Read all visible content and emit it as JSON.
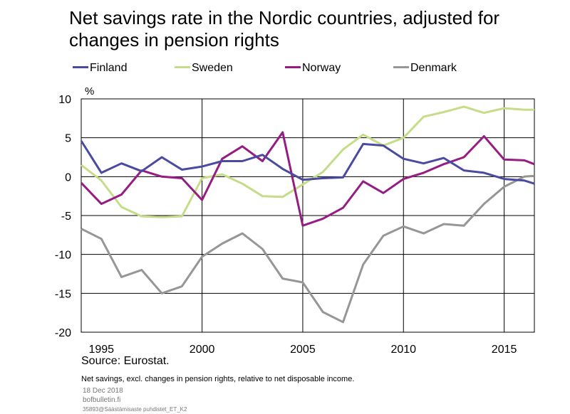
{
  "title": "Net savings rate in the Nordic countries, adjusted for changes in pension rights",
  "source": "Source: Eurostat.",
  "note": "Net savings, excl. changes in pension rights, relative to net disposable income.",
  "date": "18 Dec 2018",
  "site": "bofbulletin.fi",
  "file_id": "35893@Säästämisaste puhdistet_ET_K2",
  "chart_data": {
    "type": "line",
    "ylabel": "%",
    "xlabel": "",
    "ylim": [
      -20,
      10
    ],
    "xlim": [
      1994,
      2016.5
    ],
    "yticks": [
      10,
      5,
      0,
      -5,
      -10,
      -15,
      -20
    ],
    "xticks": [
      1995,
      2000,
      2005,
      2010,
      2015
    ],
    "grid": true,
    "legend": "top",
    "x": [
      1994,
      1995,
      1996,
      1997,
      1998,
      1999,
      2000,
      2001,
      2002,
      2003,
      2004,
      2005,
      2006,
      2007,
      2008,
      2009,
      2010,
      2011,
      2012,
      2013,
      2014,
      2015,
      2016,
      2016.5
    ],
    "series": [
      {
        "name": "Finland",
        "color": "#4a4ba0",
        "values": [
          4.6,
          0.5,
          1.7,
          0.7,
          2.5,
          0.9,
          1.3,
          2.0,
          2.0,
          2.8,
          1.0,
          -0.4,
          -0.2,
          -0.1,
          4.2,
          4.0,
          2.3,
          1.7,
          2.4,
          0.8,
          0.5,
          -0.3,
          -0.5,
          -0.9
        ]
      },
      {
        "name": "Sweden",
        "color": "#c5dc89",
        "values": [
          1.5,
          -0.5,
          -3.9,
          -5.1,
          -5.2,
          -5.1,
          -0.2,
          0.3,
          -0.9,
          -2.5,
          -2.6,
          -1.0,
          0.6,
          3.5,
          5.4,
          4.0,
          5.0,
          7.7,
          8.3,
          9.0,
          8.2,
          8.8,
          8.6,
          8.6
        ]
      },
      {
        "name": "Norway",
        "color": "#951d82",
        "values": [
          -0.8,
          -3.5,
          -2.3,
          0.8,
          0.0,
          -0.2,
          -3.0,
          2.3,
          3.9,
          2.0,
          5.7,
          -6.3,
          -5.4,
          -4.0,
          -0.6,
          -2.1,
          -0.3,
          0.5,
          1.6,
          2.5,
          5.2,
          2.2,
          2.1,
          1.6
        ]
      },
      {
        "name": "Denmark",
        "color": "#969696",
        "values": [
          -6.7,
          -8.0,
          -12.9,
          -12.0,
          -15.0,
          -14.1,
          -10.3,
          -8.6,
          -7.3,
          -9.3,
          -13.1,
          -13.6,
          -17.4,
          -18.7,
          -11.3,
          -7.6,
          -6.4,
          -7.3,
          -6.1,
          -6.3,
          -3.5,
          -1.3,
          0.0,
          0.1
        ]
      }
    ]
  }
}
